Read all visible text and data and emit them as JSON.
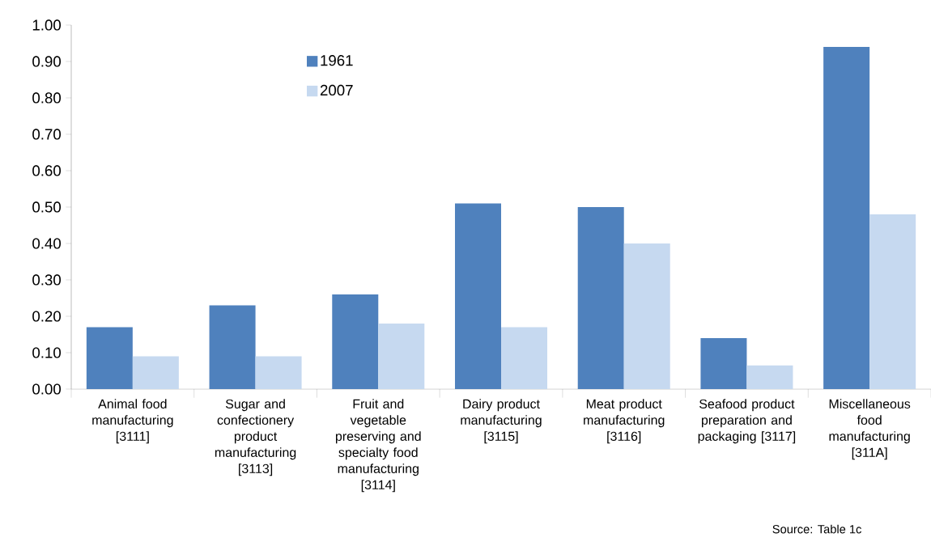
{
  "chart_data": {
    "type": "bar",
    "categories": [
      "Animal food manufacturing [3111]",
      "Sugar and confectionery product manufacturing [3113]",
      "Fruit and vegetable preserving and specialty food manufacturing [3114]",
      "Dairy product manufacturing [3115]",
      "Meat product manufacturing [3116]",
      "Seafood product preparation and packaging [3117]",
      "Miscellaneous food manufacturing [311A]"
    ],
    "series": [
      {
        "name": "1961",
        "color": "#4f81bd",
        "values": [
          0.17,
          0.23,
          0.26,
          0.51,
          0.5,
          0.14,
          0.94
        ]
      },
      {
        "name": "2007",
        "color": "#c6d9f0",
        "values": [
          0.09,
          0.09,
          0.18,
          0.17,
          0.4,
          0.065,
          0.48
        ]
      }
    ],
    "ylim": [
      0,
      1.0
    ],
    "yticks": [
      {
        "value": 0,
        "label": "0.00"
      },
      {
        "value": 0.1,
        "label": "0.10"
      },
      {
        "value": 0.2,
        "label": "0.20"
      },
      {
        "value": 0.3,
        "label": "0.30"
      },
      {
        "value": 0.4,
        "label": "0.40"
      },
      {
        "value": 0.5,
        "label": "0.50"
      },
      {
        "value": 0.6,
        "label": "0.60"
      },
      {
        "value": 0.7,
        "label": "0.70"
      },
      {
        "value": 0.8,
        "label": "0.80"
      },
      {
        "value": 0.9,
        "label": "0.90"
      },
      {
        "value": 1.0,
        "label": "1.00"
      }
    ],
    "legend": "top",
    "grid": false,
    "annotations": [
      "Source: Table 1c"
    ]
  }
}
